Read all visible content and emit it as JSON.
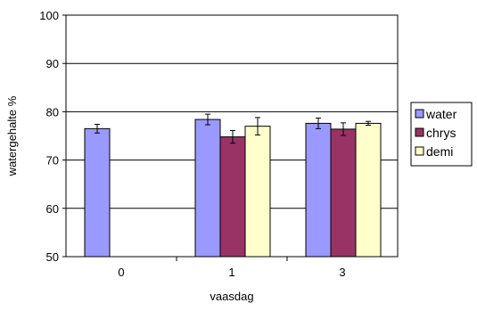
{
  "chart_data": {
    "type": "bar",
    "xlabel": "vaasdag",
    "ylabel": "watergehalte %",
    "ylim": [
      50,
      100
    ],
    "yticks": [
      50,
      60,
      70,
      80,
      90,
      100
    ],
    "categories": [
      "0",
      "1",
      "3"
    ],
    "series": [
      {
        "name": "water",
        "color": "#9999ff",
        "values": [
          76.5,
          78.4,
          77.6
        ],
        "errors": [
          0.9,
          1.1,
          1.1
        ]
      },
      {
        "name": "chrys",
        "color": "#993366",
        "values": [
          null,
          74.8,
          76.4
        ],
        "errors": [
          null,
          1.3,
          1.3
        ]
      },
      {
        "name": "demi",
        "color": "#ffffcc",
        "values": [
          null,
          77.0,
          77.6
        ],
        "errors": [
          null,
          1.8,
          0.4
        ]
      }
    ],
    "grid": "horizontal",
    "legend": "right"
  }
}
